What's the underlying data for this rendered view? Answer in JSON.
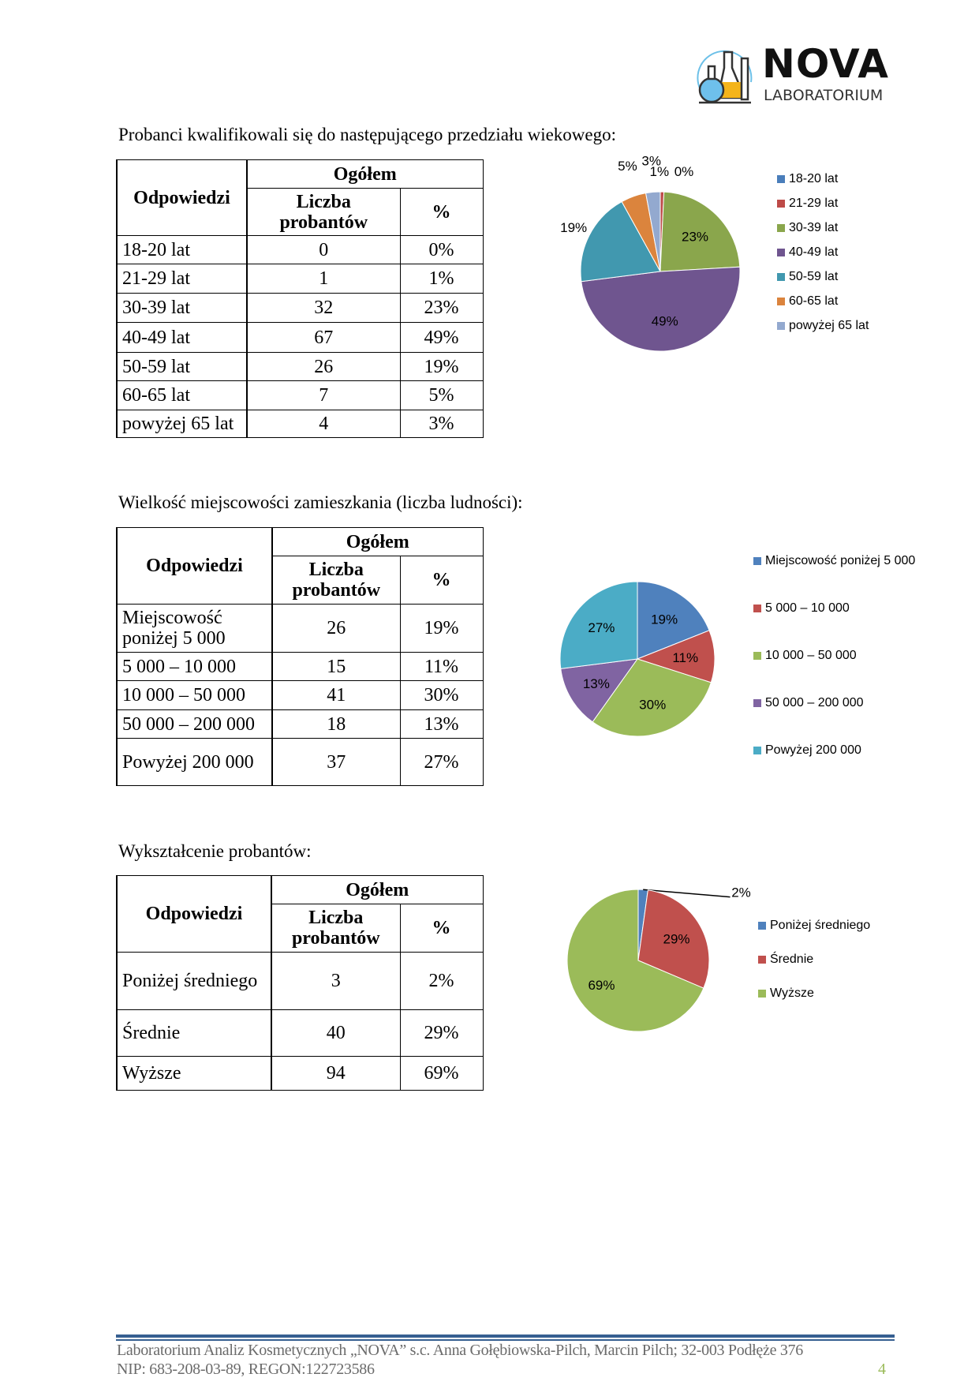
{
  "logo": {
    "name": "NOVA",
    "subtitle": "LABORATORIUM"
  },
  "sections": [
    {
      "title": "Probanci kwalifikowali się do następującego przedziału wiekowego:",
      "header": {
        "answers": "Odpowiedzi",
        "total": "Ogółem",
        "count": "Liczba probantów",
        "percent": "%"
      },
      "rows": [
        {
          "label": "18-20 lat",
          "count": "0",
          "percent": "0%"
        },
        {
          "label": "21-29 lat",
          "count": "1",
          "percent": "1%"
        },
        {
          "label": "30-39 lat",
          "count": "32",
          "percent": "23%"
        },
        {
          "label": "40-49 lat",
          "count": "67",
          "percent": "49%"
        },
        {
          "label": "50-59 lat",
          "count": "26",
          "percent": "19%"
        },
        {
          "label": "60-65 lat",
          "count": "7",
          "percent": "5%"
        },
        {
          "label": "powyżej 65 lat",
          "count": "4",
          "percent": "3%"
        }
      ]
    },
    {
      "title": "Wielkość miejscowości zamieszkania (liczba ludności):",
      "header": {
        "answers": "Odpowiedzi",
        "total": "Ogółem",
        "count": "Liczba probantów",
        "percent": "%"
      },
      "rows": [
        {
          "label": "Miejscowość poniżej 5 000",
          "count": "26",
          "percent": "19%"
        },
        {
          "label": "5 000 – 10 000",
          "count": "15",
          "percent": "11%"
        },
        {
          "label": "10 000 – 50 000",
          "count": "41",
          "percent": "30%"
        },
        {
          "label": "50 000 – 200 000",
          "count": "18",
          "percent": "13%"
        },
        {
          "label": "Powyżej 200 000",
          "count": "37",
          "percent": "27%"
        }
      ]
    },
    {
      "title": "Wykształcenie probantów:",
      "header": {
        "answers": "Odpowiedzi",
        "total": "Ogółem",
        "count": "Liczba probantów",
        "percent": "%"
      },
      "rows": [
        {
          "label": "Poniżej średniego",
          "count": "3",
          "percent": "2%"
        },
        {
          "label": "Średnie",
          "count": "40",
          "percent": "29%"
        },
        {
          "label": "Wyższe",
          "count": "94",
          "percent": "69%"
        }
      ]
    }
  ],
  "chart_data": [
    {
      "type": "pie",
      "categories": [
        "18-20 lat",
        "21-29 lat",
        "30-39 lat",
        "40-49 lat",
        "50-59 lat",
        "60-65 lat",
        "powyżej 65 lat"
      ],
      "values": [
        0,
        1,
        32,
        67,
        26,
        7,
        4
      ],
      "data_labels": [
        "0%",
        "1%",
        "23%",
        "49%",
        "19%",
        "5%",
        "3%"
      ],
      "colors": [
        "#4A7EBB",
        "#BE4B48",
        "#8AA64C",
        "#6F558F",
        "#4198AF",
        "#DB843D",
        "#93A9CF"
      ],
      "legend": "right"
    },
    {
      "type": "pie",
      "categories": [
        "Miejscowość poniżej 5 000",
        "5 000 – 10 000",
        "10 000 – 50 000",
        "50 000 – 200 000",
        "Powyżej 200 000"
      ],
      "values": [
        26,
        15,
        41,
        18,
        37
      ],
      "data_labels": [
        "19%",
        "11%",
        "30%",
        "13%",
        "27%"
      ],
      "colors": [
        "#4F81BD",
        "#C0504D",
        "#9BBB59",
        "#8064A2",
        "#4BACC6"
      ],
      "legend": "right"
    },
    {
      "type": "pie",
      "categories": [
        "Poniżej średniego",
        "Średnie",
        "Wyższe"
      ],
      "values": [
        3,
        40,
        94
      ],
      "data_labels": [
        "2%",
        "29%",
        "69%"
      ],
      "colors": [
        "#4F81BD",
        "#C0504D",
        "#9BBB59"
      ],
      "legend": "right"
    }
  ],
  "footer": {
    "line1": "Laboratorium Analiz Kosmetycznych „NOVA” s.c. Anna Gołębiowska-Pilch, Marcin Pilch; 32-003 Podłęże 376",
    "line2": "NIP: 683-208-03-89, REGON:122723586",
    "page_number": "4"
  }
}
